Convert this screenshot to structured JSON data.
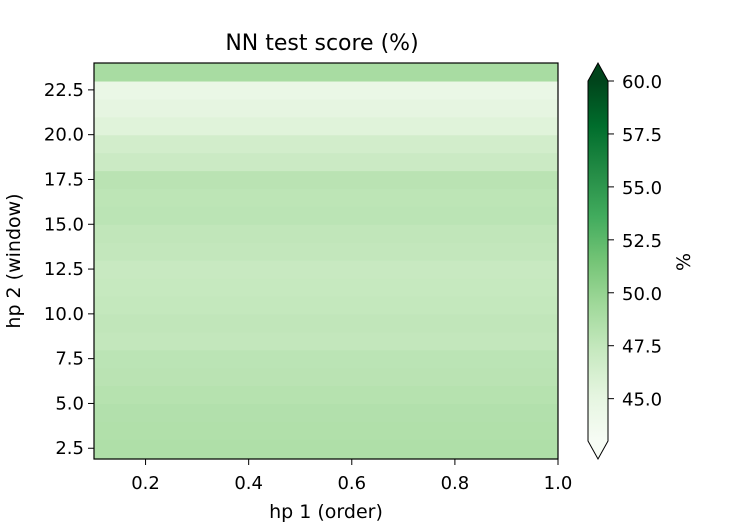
{
  "chart_data": {
    "type": "heatmap",
    "title": "NN test score (%)",
    "xlabel": "hp 1 (order)",
    "ylabel": "hp 2 (window)",
    "xlim": [
      0.1,
      1.0
    ],
    "ylim": [
      1.9,
      24.0
    ],
    "xticks": [
      0.2,
      0.4,
      0.6,
      0.8,
      1.0
    ],
    "xtick_labels": [
      "0.2",
      "0.4",
      "0.6",
      "0.8",
      "1.0"
    ],
    "yticks": [
      2.5,
      5.0,
      7.5,
      10.0,
      12.5,
      15.0,
      17.5,
      20.0,
      22.5
    ],
    "ytick_labels": [
      "2.5",
      "5.0",
      "7.5",
      "10.0",
      "12.5",
      "15.0",
      "17.5",
      "20.0",
      "22.5"
    ],
    "rows": [
      {
        "y0": 1.9,
        "y1": 3.0,
        "value": 48.6
      },
      {
        "y0": 3.0,
        "y1": 4.0,
        "value": 48.5
      },
      {
        "y0": 4.0,
        "y1": 5.0,
        "value": 48.4
      },
      {
        "y0": 5.0,
        "y1": 6.0,
        "value": 48.2
      },
      {
        "y0": 6.0,
        "y1": 7.0,
        "value": 48.0
      },
      {
        "y0": 7.0,
        "y1": 8.0,
        "value": 47.9
      },
      {
        "y0": 8.0,
        "y1": 9.0,
        "value": 47.5
      },
      {
        "y0": 9.0,
        "y1": 10.0,
        "value": 47.6
      },
      {
        "y0": 10.0,
        "y1": 11.0,
        "value": 47.4
      },
      {
        "y0": 11.0,
        "y1": 12.0,
        "value": 47.3
      },
      {
        "y0": 12.0,
        "y1": 13.0,
        "value": 47.2
      },
      {
        "y0": 13.0,
        "y1": 14.0,
        "value": 47.5
      },
      {
        "y0": 14.0,
        "y1": 15.0,
        "value": 47.6
      },
      {
        "y0": 15.0,
        "y1": 16.0,
        "value": 47.9
      },
      {
        "y0": 16.0,
        "y1": 17.0,
        "value": 47.8
      },
      {
        "y0": 17.0,
        "y1": 18.0,
        "value": 48.0
      },
      {
        "y0": 18.0,
        "y1": 19.0,
        "value": 47.0
      },
      {
        "y0": 19.0,
        "y1": 20.0,
        "value": 46.5
      },
      {
        "y0": 20.0,
        "y1": 21.0,
        "value": 45.5
      },
      {
        "y0": 21.0,
        "y1": 22.0,
        "value": 45.0
      },
      {
        "y0": 22.0,
        "y1": 23.0,
        "value": 44.5
      },
      {
        "y0": 23.0,
        "y1": 24.0,
        "value": 49.0
      }
    ],
    "colorbar": {
      "label": "%",
      "vmin": 43.0,
      "vmax": 60.0,
      "ticks": [
        45.0,
        47.5,
        50.0,
        52.5,
        55.0,
        57.5,
        60.0
      ],
      "tick_labels": [
        "45.0",
        "47.5",
        "50.0",
        "52.5",
        "55.0",
        "57.5",
        "60.0"
      ],
      "extend": "both",
      "colormap": "Greens",
      "colors": [
        "#f7fcf5",
        "#e5f5e0",
        "#c7e9c0",
        "#a1d99b",
        "#74c476",
        "#41ab5d",
        "#238b45",
        "#006d2c",
        "#00441b"
      ]
    }
  }
}
